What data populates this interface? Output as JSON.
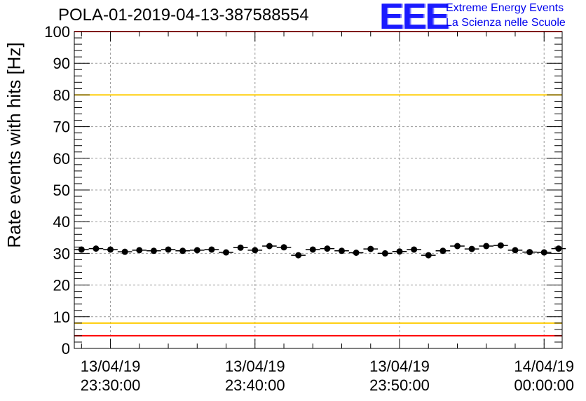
{
  "title": "POLA-01-2019-04-13-387588554",
  "logo": {
    "mark": "EEE",
    "line1": "Extreme Energy Events",
    "line2": "La Scienza nelle Scuole",
    "color": "#0000ee"
  },
  "chart_data": {
    "type": "scatter",
    "title": "POLA-01-2019-04-13-387588554",
    "xlabel": "",
    "ylabel": "Rate events with hits [Hz]",
    "ylim": [
      0,
      100
    ],
    "xlim_minutes": [
      -32.5,
      1.25
    ],
    "x_unit": "minutes relative to 14/04/19 00:00:00",
    "yticks": [
      0,
      10,
      20,
      30,
      40,
      50,
      60,
      70,
      80,
      90,
      100
    ],
    "xticks": [
      {
        "x": -30,
        "date": "13/04/19",
        "time": "23:30:00"
      },
      {
        "x": -20,
        "date": "13/04/19",
        "time": "23:40:00"
      },
      {
        "x": -10,
        "date": "13/04/19",
        "time": "23:50:00"
      },
      {
        "x": 0,
        "date": "14/04/19",
        "time": "00:00:00"
      }
    ],
    "grid": true,
    "bin_width_minutes": 1,
    "x": [
      -32.0,
      -31.0,
      -30.0,
      -29.0,
      -28.0,
      -27.0,
      -26.0,
      -25.0,
      -24.0,
      -23.0,
      -22.0,
      -21.0,
      -20.0,
      -19.0,
      -18.0,
      -17.0,
      -16.0,
      -15.0,
      -14.0,
      -13.0,
      -12.0,
      -11.0,
      -10.0,
      -9.0,
      -8.0,
      -7.0,
      -6.0,
      -5.0,
      -4.0,
      -3.0,
      -2.0,
      -1.0,
      0.0,
      1.0
    ],
    "values": [
      31.2,
      31.5,
      31.2,
      30.5,
      31.0,
      30.8,
      31.2,
      30.8,
      31.0,
      31.2,
      30.3,
      31.8,
      31.0,
      32.3,
      31.9,
      29.4,
      31.2,
      31.5,
      30.8,
      30.2,
      31.4,
      30.0,
      30.6,
      31.2,
      29.4,
      30.8,
      32.3,
      31.4,
      32.3,
      32.5,
      31.0,
      30.4,
      30.3,
      31.5
    ],
    "reference_lines": [
      {
        "y": 100,
        "color": "#ff0000"
      },
      {
        "y": 80,
        "color": "#ffcc00"
      },
      {
        "y": 8,
        "color": "#ffcc00"
      },
      {
        "y": 4,
        "color": "#ff0000"
      }
    ],
    "marker_color": "#000000"
  }
}
